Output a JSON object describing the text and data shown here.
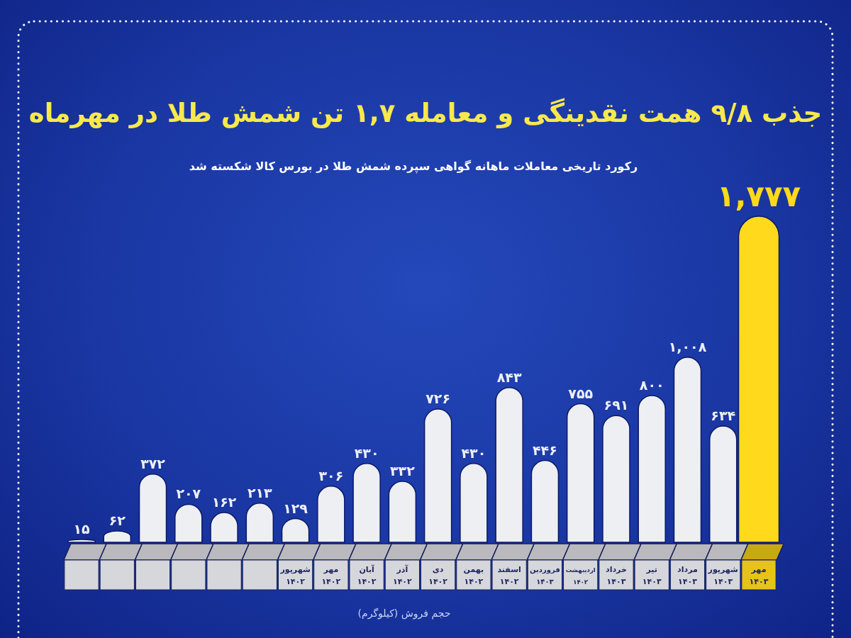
{
  "chart_data": {
    "type": "bar",
    "title": "جذب ۹/۸ همت نقدینگی و معامله ۱,۷ تن شمش طلا در مهرماه",
    "subtitle": "رکورد تاریخی معاملات ماهانه گواهی سپرده شمش طلا در بورس کالا شکسته شد",
    "annotations": [
      "حجم فروش (کیلوگرم)"
    ],
    "categories": [
      null,
      null,
      null,
      null,
      null,
      null,
      "شهریور ۱۴۰۲",
      "مهر ۱۴۰۲",
      "آبان ۱۴۰۲",
      "آذر ۱۴۰۲",
      "دی ۱۴۰۲",
      "بهمن ۱۴۰۲",
      "اسفند ۱۴۰۲",
      "فروردین ۱۴۰۳",
      "اردیبهشت ۱۴۰۳",
      "خرداد ۱۴۰۳",
      "تیر ۱۴۰۳",
      "مرداد ۱۴۰۳",
      "شهریور ۱۴۰۳",
      "مهر ۱۴۰۳"
    ],
    "values": [
      15,
      62,
      372,
      207,
      162,
      213,
      129,
      306,
      430,
      332,
      726,
      430,
      843,
      446,
      755,
      691,
      800,
      1008,
      634,
      1777
    ],
    "value_labels": [
      "۱۵",
      "۶۲",
      "۳۷۲",
      "۲۰۷",
      "۱۶۲",
      "۲۱۳",
      "۱۲۹",
      "۳۰۶",
      "۴۳۰",
      "۳۳۲",
      "۷۲۶",
      "۴۳۰",
      "۸۴۳",
      "۴۴۶",
      "۷۵۵",
      "۶۹۱",
      "۸۰۰",
      "۱,۰۰۸",
      "۶۳۴",
      "۱,۷۷۷"
    ],
    "colors": [
      "#eeeff3",
      "#eeeff3",
      "#eeeff3",
      "#eeeff3",
      "#eeeff3",
      "#eeeff3",
      "#eeeff3",
      "#eeeff3",
      "#eeeff3",
      "#eeeff3",
      "#eeeff3",
      "#eeeff3",
      "#eeeff3",
      "#eeeff3",
      "#eeeff3",
      "#eeeff3",
      "#eeeff3",
      "#eeeff3",
      "#eeeff3",
      "#ffd91c"
    ]
  }
}
